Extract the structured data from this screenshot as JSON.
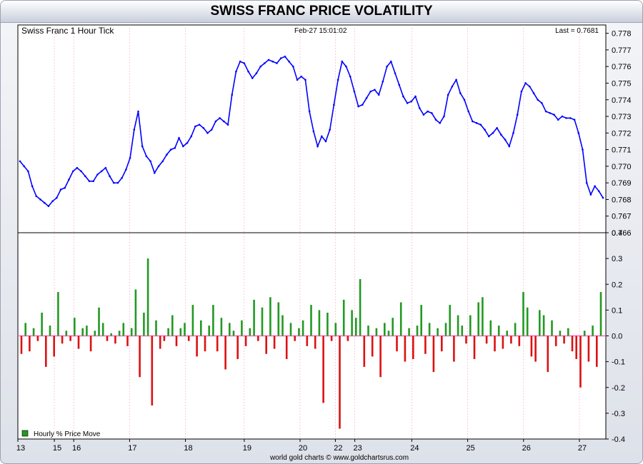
{
  "title": "SWISS FRANC PRICE VOLATILITY",
  "footer": "world gold charts © www.goldchartsrus.com",
  "colors": {
    "price": "#0000ff",
    "up": "#229922",
    "down": "#dd1111",
    "zero_line": "#ff66cc",
    "grid": "#f3a8c8"
  },
  "chart_data": [
    {
      "type": "line",
      "name": "price-panel",
      "label": "Swiss Franc 1 Hour Tick",
      "timestamp": "Feb-27  15:01:02",
      "last_label": "Last = 0.7681",
      "ylim": [
        0.766,
        0.7785
      ],
      "yticks": [
        "0.766",
        "0.767",
        "0.768",
        "0.769",
        "0.770",
        "0.771",
        "0.772",
        "0.773",
        "0.774",
        "0.775",
        "0.776",
        "0.777",
        "0.778"
      ],
      "y": [
        0.7703,
        0.77,
        0.7697,
        0.7688,
        0.7682,
        0.768,
        0.7678,
        0.7676,
        0.7679,
        0.7681,
        0.7686,
        0.7687,
        0.7692,
        0.7697,
        0.7699,
        0.7697,
        0.7694,
        0.7691,
        0.7691,
        0.7695,
        0.7697,
        0.7699,
        0.7694,
        0.769,
        0.769,
        0.7693,
        0.7698,
        0.7705,
        0.7722,
        0.7733,
        0.7712,
        0.7706,
        0.7703,
        0.7696,
        0.77,
        0.7703,
        0.7707,
        0.771,
        0.7711,
        0.7717,
        0.7712,
        0.7714,
        0.7718,
        0.7724,
        0.7725,
        0.7723,
        0.772,
        0.7722,
        0.7727,
        0.7729,
        0.7727,
        0.7725,
        0.7743,
        0.7757,
        0.7763,
        0.7762,
        0.7757,
        0.7753,
        0.7756,
        0.776,
        0.7762,
        0.7764,
        0.7763,
        0.7762,
        0.7765,
        0.7766,
        0.7763,
        0.776,
        0.7752,
        0.7754,
        0.7752,
        0.7733,
        0.7721,
        0.7712,
        0.7718,
        0.7715,
        0.7722,
        0.7737,
        0.7752,
        0.7763,
        0.776,
        0.7754,
        0.7745,
        0.7736,
        0.7737,
        0.7741,
        0.7745,
        0.7746,
        0.7743,
        0.7751,
        0.776,
        0.7763,
        0.7756,
        0.7749,
        0.7742,
        0.7738,
        0.7739,
        0.7742,
        0.7735,
        0.7731,
        0.7733,
        0.7732,
        0.7728,
        0.7726,
        0.773,
        0.7743,
        0.7748,
        0.7752,
        0.7744,
        0.774,
        0.7733,
        0.7727,
        0.7726,
        0.7725,
        0.7722,
        0.7718,
        0.772,
        0.7723,
        0.7719,
        0.7716,
        0.7712,
        0.772,
        0.7731,
        0.7745,
        0.775,
        0.7748,
        0.7744,
        0.774,
        0.7738,
        0.7733,
        0.7732,
        0.7731,
        0.7728,
        0.773,
        0.7729,
        0.7729,
        0.7728,
        0.772,
        0.771,
        0.769,
        0.7683,
        0.7688,
        0.7685,
        0.7681
      ],
      "x_tick_labels": [
        "13",
        "15",
        "16",
        "17",
        "18",
        "19",
        "20",
        "22",
        "23",
        "24",
        "25",
        "26",
        "27"
      ],
      "x_tick_fracs": [
        0.0,
        0.062,
        0.095,
        0.19,
        0.285,
        0.385,
        0.48,
        0.54,
        0.573,
        0.67,
        0.765,
        0.86,
        0.955
      ]
    },
    {
      "type": "bar",
      "name": "volatility-panel",
      "legend": "Hourly % Price Move",
      "ylim": [
        -0.4,
        0.4
      ],
      "yticks": [
        "0.4",
        "0.3",
        "0.2",
        "0.1",
        "0.0",
        "-0.1",
        "-0.2",
        "-0.3",
        "-0.4"
      ],
      "values": [
        -0.07,
        0.05,
        -0.06,
        0.03,
        -0.02,
        0.09,
        -0.12,
        0.04,
        -0.08,
        0.17,
        -0.03,
        0.02,
        -0.02,
        0.07,
        -0.05,
        0.03,
        0.04,
        -0.06,
        0.02,
        0.11,
        0.05,
        -0.02,
        0.01,
        -0.03,
        0.02,
        0.05,
        -0.04,
        0.03,
        0.18,
        -0.16,
        0.09,
        0.3,
        -0.27,
        0.06,
        -0.05,
        -0.02,
        0.03,
        0.08,
        -0.04,
        0.03,
        0.05,
        -0.02,
        0.12,
        -0.08,
        0.06,
        -0.06,
        0.04,
        0.12,
        -0.06,
        0.07,
        -0.13,
        0.05,
        0.02,
        -0.09,
        0.06,
        -0.04,
        0.03,
        0.14,
        -0.02,
        0.11,
        -0.07,
        0.15,
        -0.05,
        0.13,
        0.08,
        -0.09,
        0.05,
        -0.02,
        0.03,
        0.06,
        -0.04,
        0.12,
        -0.05,
        0.1,
        -0.26,
        0.09,
        -0.02,
        0.05,
        -0.36,
        0.14,
        -0.02,
        0.1,
        0.07,
        0.22,
        -0.12,
        0.04,
        -0.08,
        0.03,
        -0.16,
        0.05,
        0.02,
        0.07,
        -0.06,
        0.13,
        -0.1,
        0.03,
        -0.09,
        0.04,
        0.12,
        -0.07,
        0.05,
        -0.14,
        0.03,
        -0.06,
        0.05,
        0.12,
        -0.1,
        0.08,
        0.04,
        -0.03,
        0.08,
        -0.09,
        0.13,
        0.15,
        -0.03,
        0.06,
        -0.06,
        0.04,
        -0.05,
        0.02,
        -0.03,
        0.05,
        -0.04,
        0.17,
        0.11,
        -0.08,
        -0.1,
        0.1,
        0.08,
        -0.14,
        0.06,
        -0.04,
        0.02,
        -0.03,
        0.03,
        -0.06,
        -0.09,
        -0.2,
        0.02,
        -0.1,
        0.04,
        -0.12,
        0.17
      ]
    }
  ]
}
